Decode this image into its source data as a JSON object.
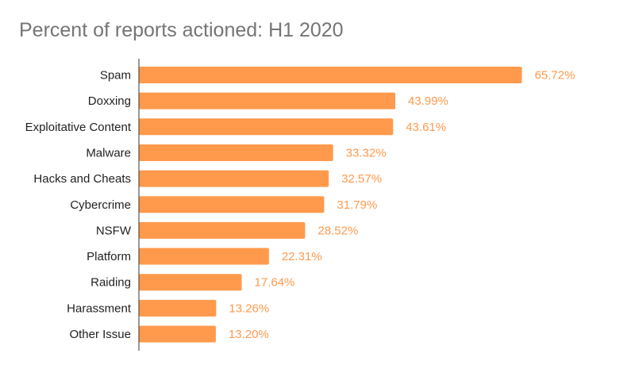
{
  "chart_data": {
    "type": "bar",
    "orientation": "horizontal",
    "title": "Percent of reports actioned: H1 2020",
    "xlabel": "",
    "ylabel": "",
    "categories": [
      "Spam",
      "Doxxing",
      "Exploitative Content",
      "Malware",
      "Hacks and Cheats",
      "Cybercrime",
      "NSFW",
      "Platform",
      "Raiding",
      "Harassment",
      "Other Issue"
    ],
    "values": [
      65.72,
      43.99,
      43.61,
      33.32,
      32.57,
      31.79,
      28.52,
      22.31,
      17.64,
      13.26,
      13.2
    ],
    "value_labels": [
      "65.72%",
      "43.99%",
      "43.61%",
      "33.32%",
      "32.57%",
      "31.79%",
      "28.52%",
      "22.31%",
      "17.64%",
      "13.26%",
      "13.20%"
    ],
    "xlim": [
      0,
      70
    ],
    "grid": false,
    "legend": "none",
    "colors": {
      "bar": "#ff9a4d",
      "value_label": "#ff9a4d",
      "axis": "#333333",
      "title": "#757575",
      "category_label": "#222222"
    }
  }
}
